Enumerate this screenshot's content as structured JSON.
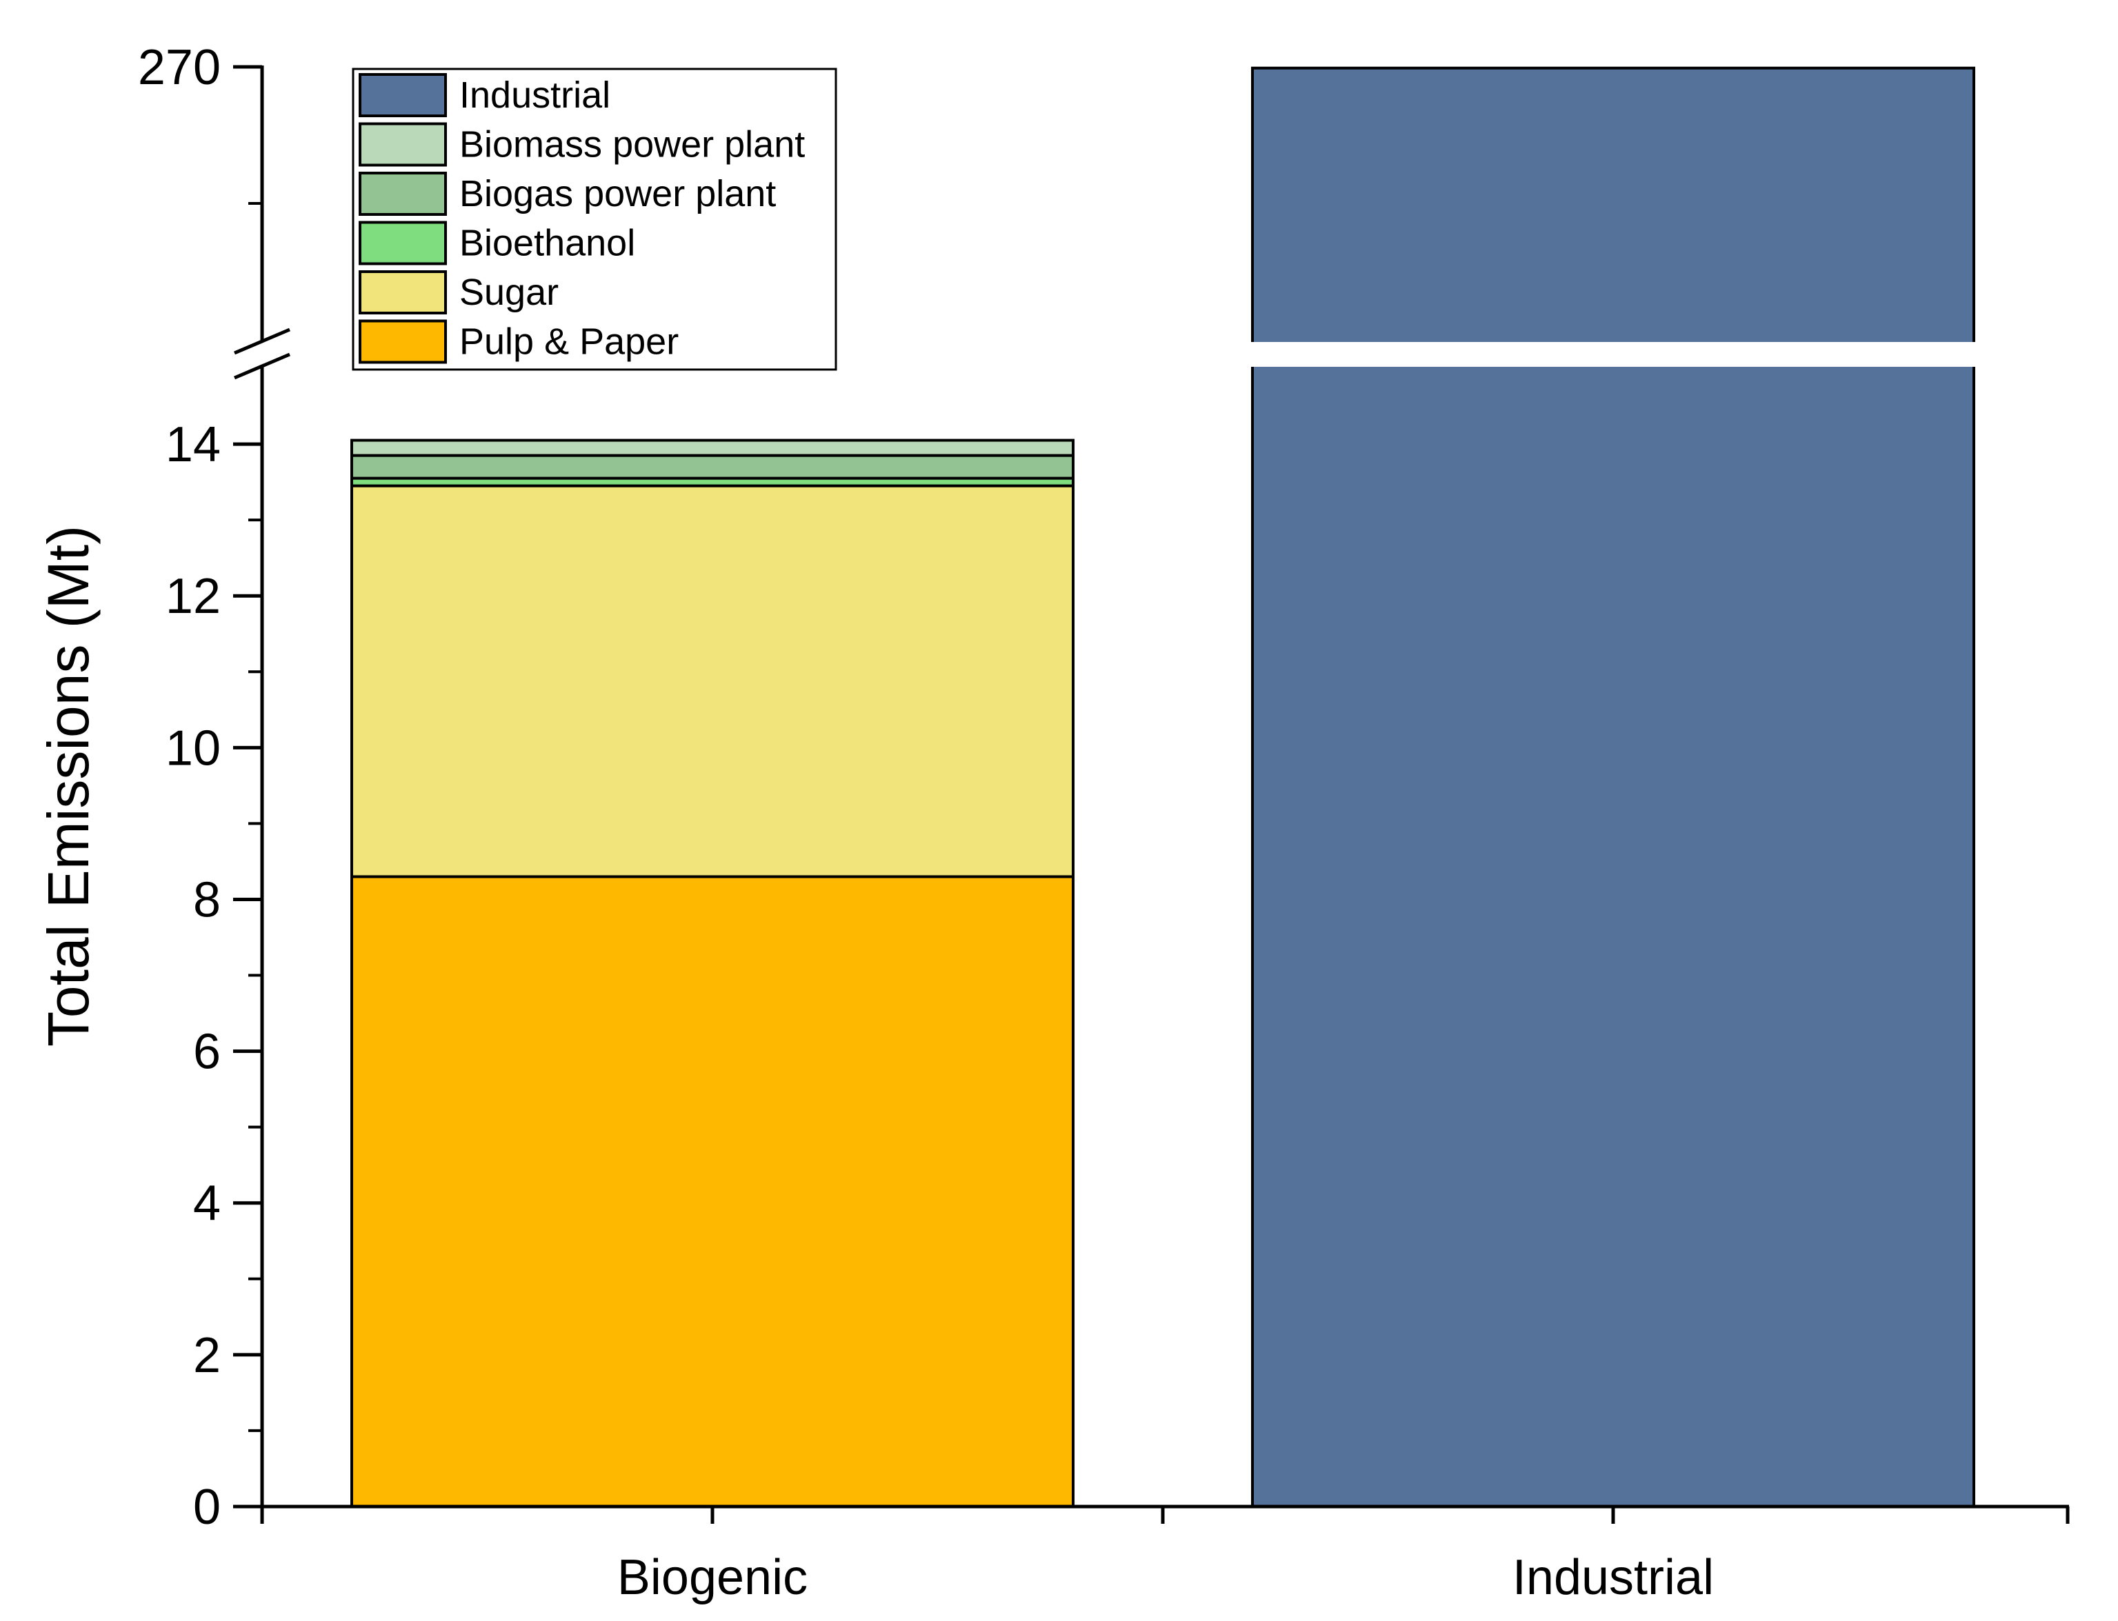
{
  "chart_data": {
    "type": "bar",
    "stacked": true,
    "broken_axis": true,
    "categories": [
      "Biogenic",
      "Industrial"
    ],
    "ylabel": "Total Emissions (Mt)",
    "y_ticks_lower": [
      "0",
      "2",
      "4",
      "6",
      "8",
      "10",
      "12",
      "14"
    ],
    "y_ticks_upper": [
      "270"
    ],
    "y_range_lower": [
      0,
      15
    ],
    "y_range_upper": [
      15,
      270
    ],
    "series": [
      {
        "name": "Pulp & Paper",
        "color": "#FFB800",
        "values": [
          8.3,
          0
        ]
      },
      {
        "name": "Sugar",
        "color": "#F0E47A",
        "values": [
          5.15,
          0
        ]
      },
      {
        "name": "Bioethanol",
        "color": "#7FDD7F",
        "values": [
          0.1,
          0
        ]
      },
      {
        "name": "Biogas power plant",
        "color": "#93C293",
        "values": [
          0.3,
          0
        ]
      },
      {
        "name": "Biomass power plant",
        "color": "#B9D9B9",
        "values": [
          0.2,
          0
        ]
      },
      {
        "name": "Industrial",
        "color": "#55729B",
        "values": [
          0,
          269
        ]
      }
    ],
    "legend": {
      "position": "top-left",
      "order": [
        "Industrial",
        "Biomass power plant",
        "Biogas power plant",
        "Bioethanol",
        "Sugar",
        "Pulp & Paper"
      ]
    },
    "grid": false
  }
}
